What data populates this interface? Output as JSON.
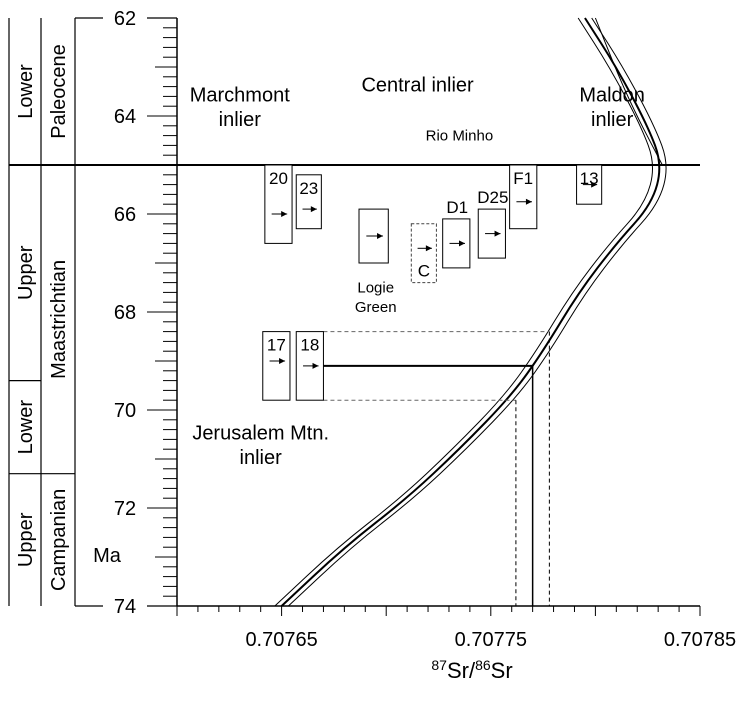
{
  "chart_data": {
    "type": "line",
    "xlabel_sup1": "87",
    "xlabel_main1": "Sr/",
    "xlabel_sup2": "86",
    "xlabel_main2": "Sr",
    "x_ticks": [
      "0.70765",
      "0.70775",
      "0.70785"
    ],
    "x_tick_values": [
      0.70765,
      0.70775,
      0.70785
    ],
    "xlim": [
      0.7076,
      0.70785
    ],
    "y_ticks": [
      "62",
      "64",
      "66",
      "68",
      "70",
      "72",
      "74"
    ],
    "y_tick_values": [
      62,
      64,
      66,
      68,
      70,
      72,
      74
    ],
    "ylim": [
      62,
      74
    ],
    "y_unit": "Ma",
    "boundary_age": 65.0,
    "stratigraphy": [
      {
        "sub": "Lower",
        "stage": "Paleocene",
        "top": 62,
        "bottom": 65
      },
      {
        "sub": "Upper",
        "stage": "Maastrichtian",
        "top": 65,
        "bottom": 69.4
      },
      {
        "sub": "Lower",
        "stage": "",
        "top": 69.4,
        "bottom": 71.3
      },
      {
        "sub": "Upper",
        "stage": "Campanian",
        "top": 71.3,
        "bottom": 74
      }
    ],
    "inlier_labels": [
      {
        "text": "Marchmont",
        "x": 0.70763,
        "y": 63.7
      },
      {
        "text": "inlier",
        "x": 0.70763,
        "y": 64.2
      },
      {
        "text": "Central inlier",
        "x": 0.707715,
        "y": 63.5
      },
      {
        "text": "Rio Minho",
        "x": 0.707735,
        "y": 64.5
      },
      {
        "text": "Maldon",
        "x": 0.707808,
        "y": 63.7
      },
      {
        "text": "inlier",
        "x": 0.707808,
        "y": 64.2
      },
      {
        "text": "Jerusalem Mtn.",
        "x": 0.70764,
        "y": 70.6
      },
      {
        "text": "inlier",
        "x": 0.70764,
        "y": 71.1
      },
      {
        "text": "Logie",
        "x": 0.707695,
        "y": 67.6
      },
      {
        "text": "Green",
        "x": 0.707695,
        "y": 68.0
      }
    ],
    "samples": [
      {
        "label": "20",
        "x_left": 0.707642,
        "x_right": 0.707655,
        "y_top": 65.0,
        "y_bottom": 66.6,
        "arrow_y": 66.0,
        "dashed": false,
        "label_pos": "inside"
      },
      {
        "label": "23",
        "x_left": 0.707657,
        "x_right": 0.707669,
        "y_top": 65.2,
        "y_bottom": 66.3,
        "arrow_y": 65.9,
        "dashed": false,
        "label_pos": "inside"
      },
      {
        "label": "",
        "x_left": 0.707687,
        "x_right": 0.707701,
        "y_top": 65.9,
        "y_bottom": 67.0,
        "arrow_y": 66.45,
        "dashed": false,
        "label_pos": "none"
      },
      {
        "label": "C",
        "x_left": 0.707712,
        "x_right": 0.707724,
        "y_top": 66.2,
        "y_bottom": 67.4,
        "arrow_y": 66.7,
        "dashed": true,
        "label_pos": "inside"
      },
      {
        "label": "D1",
        "x_left": 0.707727,
        "x_right": 0.70774,
        "y_top": 66.1,
        "y_bottom": 67.1,
        "arrow_y": 66.6,
        "dashed": false,
        "label_pos": "above"
      },
      {
        "label": "D25",
        "x_left": 0.707744,
        "x_right": 0.707757,
        "y_top": 65.9,
        "y_bottom": 66.9,
        "arrow_y": 66.4,
        "dashed": false,
        "label_pos": "above"
      },
      {
        "label": "F1",
        "x_left": 0.707759,
        "x_right": 0.707772,
        "y_top": 65.0,
        "y_bottom": 66.3,
        "arrow_y": 65.75,
        "dashed": false,
        "label_pos": "inside"
      },
      {
        "label": "13",
        "x_left": 0.707791,
        "x_right": 0.707803,
        "y_top": 65.0,
        "y_bottom": 65.8,
        "arrow_y": 65.4,
        "dashed": false,
        "label_pos": "inside"
      },
      {
        "label": "17",
        "x_left": 0.707641,
        "x_right": 0.707654,
        "y_top": 68.4,
        "y_bottom": 69.8,
        "arrow_y": 69.0,
        "dashed": false,
        "label_pos": "inside"
      },
      {
        "label": "18",
        "x_left": 0.707657,
        "x_right": 0.70767,
        "y_top": 68.4,
        "y_bottom": 69.8,
        "arrow_y": 69.1,
        "dashed": false,
        "label_pos": "inside"
      }
    ],
    "curve_center": [
      [
        0.70765,
        74.0
      ],
      [
        0.70768,
        72.8
      ],
      [
        0.70771,
        71.8
      ],
      [
        0.707735,
        70.8
      ],
      [
        0.70776,
        69.7
      ],
      [
        0.707775,
        68.8
      ],
      [
        0.707792,
        67.6
      ],
      [
        0.70781,
        66.6
      ],
      [
        0.707827,
        65.8
      ],
      [
        0.707832,
        65.0
      ],
      [
        0.707825,
        64.2
      ],
      [
        0.70781,
        63.0
      ],
      [
        0.707795,
        62.0
      ]
    ],
    "curve_offset_x": 1.8e-06,
    "upper_branch": [
      [
        0.707832,
        65.0
      ],
      [
        0.707815,
        63.6
      ],
      [
        0.7078,
        62.0
      ]
    ],
    "age_lookup": {
      "age": 69.1,
      "x_from": 0.70767,
      "x_mean": 0.70777,
      "x_min": 0.707762,
      "x_max": 0.707778,
      "age_min": 68.4,
      "age_max": 69.8
    }
  }
}
